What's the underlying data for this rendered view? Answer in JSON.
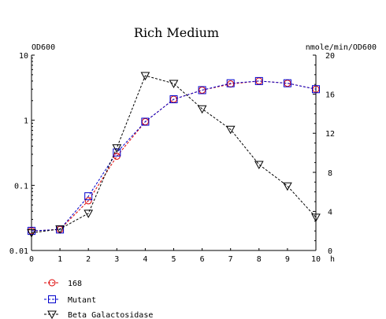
{
  "chart_data": {
    "type": "line",
    "title": "Rich Medium",
    "x": [
      0,
      1,
      2,
      3,
      4,
      5,
      6,
      7,
      8,
      9,
      10
    ],
    "xlabel": "h",
    "xlim": [
      0,
      10
    ],
    "xticks": [
      "0",
      "1",
      "2",
      "3",
      "4",
      "5",
      "6",
      "7",
      "8",
      "9",
      "10"
    ],
    "y_left": {
      "label": "OD600",
      "scale": "log",
      "lim": [
        0.01,
        10
      ],
      "ticks": [
        "0.01",
        "0.1",
        "1",
        "10"
      ]
    },
    "y_right": {
      "label": "nmole/min/OD600",
      "scale": "linear",
      "lim": [
        0,
        20
      ],
      "ticks": [
        "0",
        "4",
        "8",
        "12",
        "16",
        "20"
      ]
    },
    "grid": false,
    "legend_position": "bottom-left",
    "series": [
      {
        "name": "168",
        "axis": "left",
        "marker": "circle",
        "color": "#dd0000",
        "values": [
          0.02,
          0.021,
          0.058,
          0.28,
          0.95,
          2.1,
          2.9,
          3.6,
          4.0,
          3.7,
          3.0
        ]
      },
      {
        "name": "Mutant",
        "axis": "left",
        "marker": "square",
        "color": "#0000cc",
        "values": [
          0.02,
          0.021,
          0.068,
          0.32,
          0.95,
          2.1,
          2.9,
          3.7,
          4.0,
          3.7,
          3.0
        ]
      },
      {
        "name": "Beta Galactosidase",
        "axis": "right",
        "marker": "triangle-down",
        "color": "#000000",
        "values": [
          1.8,
          2.2,
          3.8,
          10.5,
          17.9,
          17.1,
          14.5,
          12.4,
          8.8,
          6.6,
          3.4
        ]
      }
    ]
  }
}
